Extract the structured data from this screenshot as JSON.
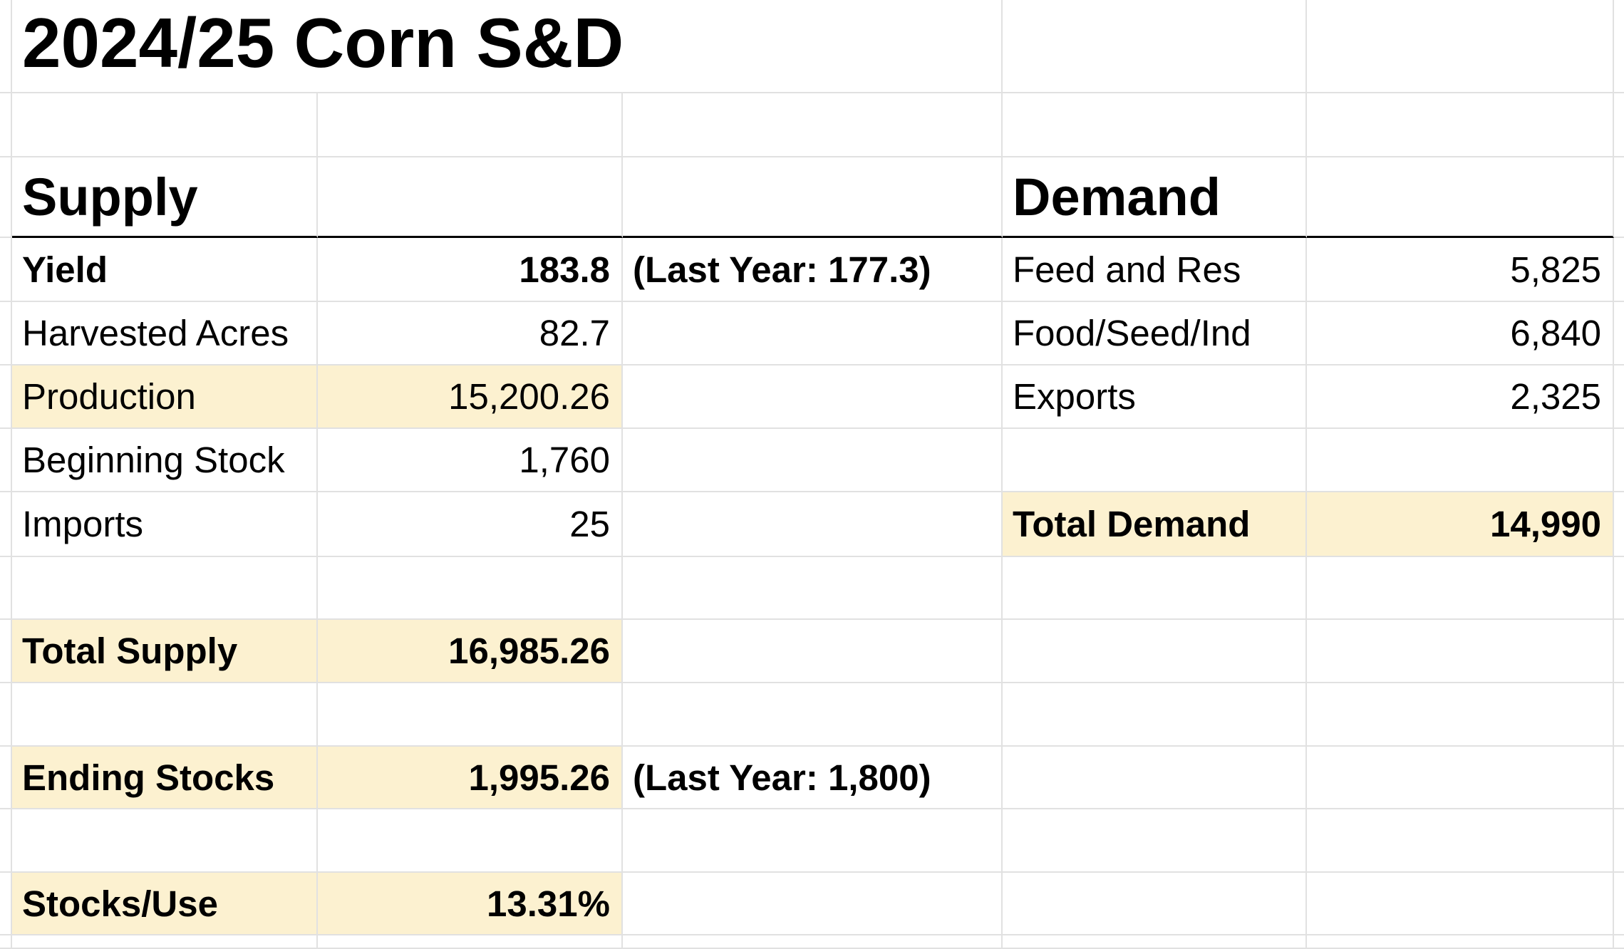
{
  "title": "2024/25 Corn S&D",
  "supply": {
    "heading": "Supply",
    "rows": [
      {
        "label": "Yield",
        "value": "183.8",
        "note": "(Last Year: 177.3)"
      },
      {
        "label": "Harvested Acres",
        "value": "82.7"
      },
      {
        "label": "Production",
        "value": "15,200.26"
      },
      {
        "label": "Beginning Stock",
        "value": "1,760"
      },
      {
        "label": "Imports",
        "value": "25"
      }
    ],
    "total": {
      "label": "Total Supply",
      "value": "16,985.26"
    },
    "ending": {
      "label": "Ending Stocks",
      "value": "1,995.26",
      "note": "(Last Year: 1,800)"
    },
    "ratio": {
      "label": "Stocks/Use",
      "value": "13.31%"
    }
  },
  "demand": {
    "heading": "Demand",
    "rows": [
      {
        "label": "Feed and Res",
        "value": "5,825"
      },
      {
        "label": "Food/Seed/Ind",
        "value": "6,840"
      },
      {
        "label": "Exports",
        "value": "2,325"
      }
    ],
    "total": {
      "label": "Total Demand",
      "value": "14,990"
    }
  }
}
